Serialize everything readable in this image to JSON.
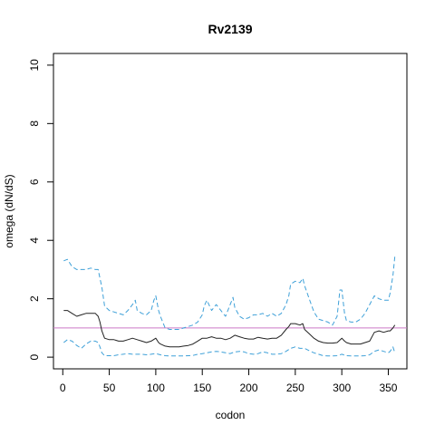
{
  "chart_data": {
    "type": "line",
    "title": "Rv2139",
    "xlabel": "codon",
    "ylabel": "omega (dN/dS)",
    "xlim": [
      -10,
      370
    ],
    "ylim": [
      -0.4,
      10.4
    ],
    "x_ticks": [
      0,
      50,
      100,
      150,
      200,
      250,
      300,
      350
    ],
    "y_ticks": [
      0,
      2,
      4,
      6,
      8,
      10
    ],
    "grid": false,
    "legend": "none",
    "reference_line": {
      "y": 1,
      "color": "#cc79c8"
    },
    "series": [
      {
        "role": "upper",
        "style": "dashed",
        "color": "#3ea0d8",
        "x": [
          1,
          5,
          10,
          15,
          20,
          25,
          30,
          35,
          38,
          40,
          42,
          45,
          50,
          55,
          60,
          65,
          70,
          75,
          78,
          80,
          85,
          90,
          95,
          98,
          100,
          103,
          105,
          110,
          115,
          120,
          125,
          130,
          135,
          140,
          145,
          150,
          152,
          155,
          160,
          165,
          170,
          175,
          180,
          183,
          185,
          190,
          195,
          200,
          205,
          210,
          215,
          220,
          225,
          230,
          235,
          240,
          243,
          245,
          250,
          255,
          258,
          260,
          265,
          270,
          275,
          280,
          285,
          290,
          295,
          298,
          300,
          303,
          305,
          310,
          315,
          320,
          325,
          330,
          335,
          340,
          345,
          350,
          352,
          355,
          357
        ],
        "y": [
          3.3,
          3.35,
          3.1,
          3.0,
          3.0,
          3.0,
          3.05,
          3.0,
          3.0,
          2.7,
          2.4,
          1.75,
          1.6,
          1.55,
          1.5,
          1.45,
          1.6,
          1.8,
          1.95,
          1.6,
          1.5,
          1.45,
          1.6,
          1.95,
          2.1,
          1.6,
          1.4,
          1.0,
          0.95,
          0.95,
          0.95,
          1.0,
          1.05,
          1.1,
          1.2,
          1.45,
          1.75,
          1.95,
          1.6,
          1.8,
          1.6,
          1.4,
          1.8,
          2.05,
          1.7,
          1.4,
          1.3,
          1.35,
          1.45,
          1.45,
          1.5,
          1.4,
          1.5,
          1.4,
          1.5,
          1.8,
          2.1,
          2.5,
          2.6,
          2.55,
          2.7,
          2.45,
          2.0,
          1.55,
          1.3,
          1.25,
          1.2,
          1.1,
          1.4,
          2.3,
          2.3,
          1.5,
          1.25,
          1.2,
          1.2,
          1.3,
          1.5,
          1.8,
          2.1,
          2.0,
          1.95,
          1.95,
          2.2,
          2.8,
          3.45
        ]
      },
      {
        "role": "estimate",
        "style": "solid",
        "color": "#222222",
        "x": [
          1,
          5,
          10,
          15,
          20,
          25,
          30,
          35,
          38,
          40,
          42,
          45,
          50,
          55,
          60,
          65,
          70,
          75,
          80,
          85,
          90,
          95,
          100,
          103,
          105,
          110,
          115,
          120,
          125,
          130,
          135,
          140,
          145,
          150,
          155,
          160,
          165,
          170,
          175,
          180,
          185,
          190,
          195,
          200,
          205,
          210,
          215,
          220,
          225,
          230,
          235,
          240,
          243,
          245,
          250,
          255,
          258,
          260,
          265,
          270,
          275,
          280,
          285,
          290,
          295,
          300,
          303,
          305,
          310,
          315,
          320,
          325,
          330,
          335,
          340,
          345,
          350,
          352,
          355,
          357
        ],
        "y": [
          1.6,
          1.6,
          1.5,
          1.4,
          1.45,
          1.5,
          1.5,
          1.5,
          1.4,
          1.2,
          0.9,
          0.65,
          0.6,
          0.6,
          0.55,
          0.55,
          0.6,
          0.65,
          0.6,
          0.55,
          0.5,
          0.55,
          0.65,
          0.5,
          0.45,
          0.38,
          0.35,
          0.35,
          0.35,
          0.38,
          0.4,
          0.45,
          0.55,
          0.65,
          0.65,
          0.7,
          0.65,
          0.65,
          0.6,
          0.65,
          0.75,
          0.7,
          0.65,
          0.62,
          0.62,
          0.68,
          0.65,
          0.62,
          0.65,
          0.65,
          0.75,
          0.95,
          1.05,
          1.15,
          1.15,
          1.1,
          1.15,
          0.95,
          0.8,
          0.65,
          0.55,
          0.5,
          0.48,
          0.48,
          0.5,
          0.65,
          0.55,
          0.5,
          0.45,
          0.45,
          0.45,
          0.5,
          0.55,
          0.85,
          0.9,
          0.85,
          0.9,
          0.9,
          1.0,
          1.1
        ]
      },
      {
        "role": "lower",
        "style": "dashed",
        "color": "#3ea0d8",
        "x": [
          1,
          5,
          10,
          15,
          20,
          25,
          30,
          35,
          38,
          40,
          42,
          45,
          50,
          55,
          60,
          65,
          70,
          75,
          80,
          85,
          90,
          95,
          100,
          105,
          110,
          115,
          120,
          125,
          130,
          135,
          140,
          145,
          150,
          155,
          160,
          165,
          170,
          175,
          180,
          185,
          190,
          195,
          200,
          205,
          210,
          215,
          220,
          225,
          230,
          235,
          240,
          245,
          250,
          255,
          260,
          265,
          270,
          275,
          280,
          285,
          290,
          295,
          300,
          305,
          310,
          315,
          320,
          325,
          330,
          335,
          340,
          345,
          350,
          352,
          355,
          357
        ],
        "y": [
          0.5,
          0.6,
          0.55,
          0.4,
          0.3,
          0.45,
          0.55,
          0.55,
          0.5,
          0.35,
          0.15,
          0.05,
          0.05,
          0.05,
          0.08,
          0.1,
          0.12,
          0.1,
          0.1,
          0.1,
          0.08,
          0.1,
          0.12,
          0.08,
          0.05,
          0.04,
          0.04,
          0.04,
          0.04,
          0.05,
          0.06,
          0.1,
          0.12,
          0.15,
          0.18,
          0.2,
          0.18,
          0.15,
          0.12,
          0.18,
          0.2,
          0.18,
          0.12,
          0.1,
          0.12,
          0.18,
          0.15,
          0.1,
          0.1,
          0.12,
          0.2,
          0.3,
          0.35,
          0.3,
          0.3,
          0.22,
          0.15,
          0.1,
          0.05,
          0.04,
          0.04,
          0.05,
          0.1,
          0.05,
          0.04,
          0.04,
          0.04,
          0.05,
          0.08,
          0.2,
          0.25,
          0.2,
          0.15,
          0.2,
          0.35,
          0.15
        ]
      }
    ]
  }
}
